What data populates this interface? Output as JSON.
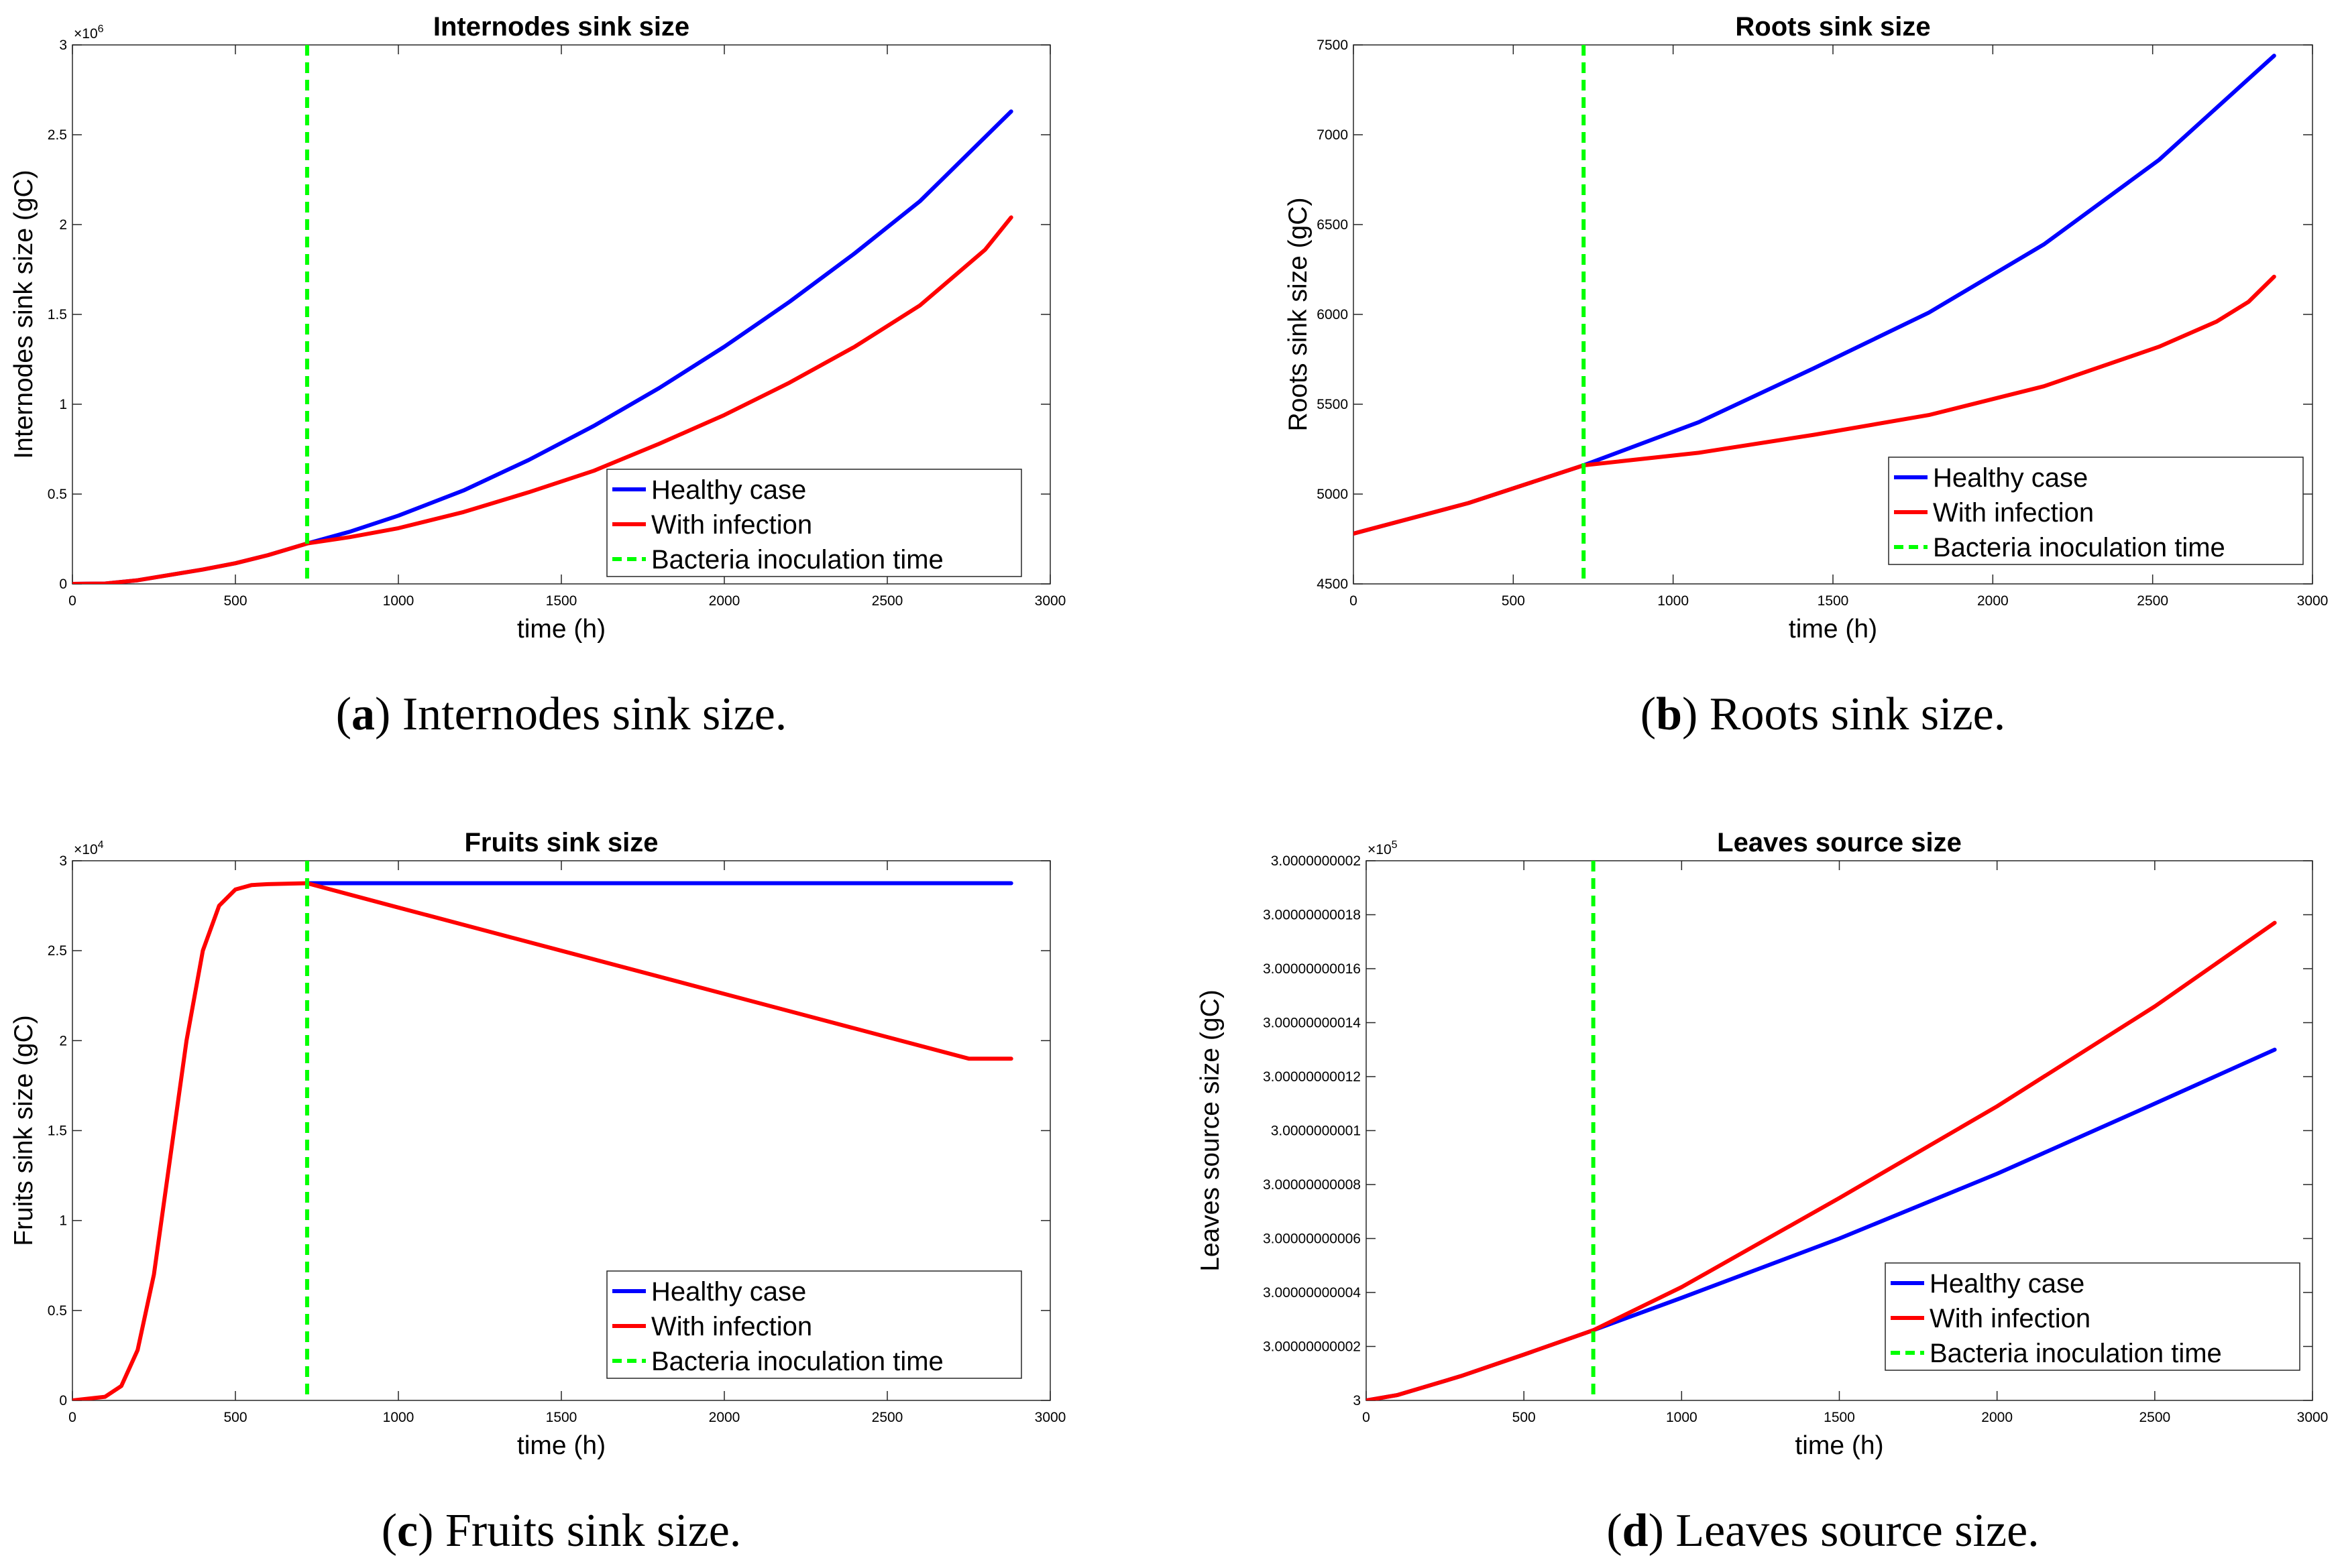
{
  "colors": {
    "healthy": "#0000ff",
    "infection": "#ff0000",
    "inoculation": "#00ff00",
    "axis": "#000000"
  },
  "chart_data": [
    {
      "id": "a",
      "type": "line",
      "title": "Internodes sink size",
      "xlabel": "time (h)",
      "ylabel": "Internodes sink size (gC)",
      "xlim": [
        0,
        3000
      ],
      "ylim": [
        0,
        3000000
      ],
      "xticks": [
        0,
        500,
        1000,
        1500,
        2000,
        2500,
        3000
      ],
      "xtick_labels": [
        "0",
        "500",
        "1000",
        "1500",
        "2000",
        "2500",
        "3000"
      ],
      "yticks": [
        0,
        500000,
        1000000,
        1500000,
        2000000,
        2500000,
        3000000
      ],
      "ytick_labels": [
        "0",
        "0.5",
        "1",
        "1.5",
        "2",
        "2.5",
        "3"
      ],
      "exponent_label": "×10",
      "exponent_power": "6",
      "legend_position": "lower-right",
      "vline_x": 720,
      "series": [
        {
          "name": "Healthy case",
          "x": [
            0,
            100,
            200,
            300,
            400,
            500,
            600,
            720,
            850,
            1000,
            1200,
            1400,
            1600,
            1800,
            2000,
            2200,
            2400,
            2600,
            2880
          ],
          "y": [
            0,
            2000,
            20000,
            50000,
            80000,
            115000,
            160000,
            225000,
            290000,
            380000,
            520000,
            690000,
            880000,
            1090000,
            1320000,
            1570000,
            1840000,
            2130000,
            2630000
          ]
        },
        {
          "name": "With infection",
          "x": [
            0,
            100,
            200,
            300,
            400,
            500,
            600,
            720,
            850,
            1000,
            1200,
            1400,
            1600,
            1800,
            2000,
            2200,
            2400,
            2600,
            2800,
            2880
          ],
          "y": [
            0,
            2000,
            20000,
            50000,
            80000,
            115000,
            160000,
            225000,
            260000,
            310000,
            400000,
            510000,
            630000,
            780000,
            940000,
            1120000,
            1320000,
            1550000,
            1860000,
            2040000
          ]
        },
        {
          "name": "Bacteria inoculation time",
          "style": "dashed"
        }
      ]
    },
    {
      "id": "b",
      "type": "line",
      "title": "Roots sink size",
      "xlabel": "time (h)",
      "ylabel": "Roots sink size (gC)",
      "xlim": [
        0,
        3000
      ],
      "ylim": [
        4500,
        7500
      ],
      "xticks": [
        0,
        500,
        1000,
        1500,
        2000,
        2500,
        3000
      ],
      "xtick_labels": [
        "0",
        "500",
        "1000",
        "1500",
        "2000",
        "2500",
        "3000"
      ],
      "yticks": [
        4500,
        5000,
        5500,
        6000,
        6500,
        7000,
        7500
      ],
      "ytick_labels": [
        "4500",
        "5000",
        "5500",
        "6000",
        "6500",
        "7000",
        "7500"
      ],
      "legend_position": "lower-right",
      "vline_x": 720,
      "series": [
        {
          "name": "Healthy case",
          "x": [
            0,
            360,
            720,
            1080,
            1440,
            1800,
            2160,
            2520,
            2880
          ],
          "y": [
            4780,
            4950,
            5160,
            5400,
            5700,
            6010,
            6390,
            6860,
            7440
          ]
        },
        {
          "name": "With infection",
          "x": [
            0,
            360,
            720,
            1080,
            1440,
            1800,
            2160,
            2520,
            2700,
            2800,
            2880
          ],
          "y": [
            4780,
            4950,
            5160,
            5230,
            5330,
            5440,
            5600,
            5820,
            5960,
            6070,
            6210
          ]
        },
        {
          "name": "Bacteria inoculation time",
          "style": "dashed"
        }
      ]
    },
    {
      "id": "c",
      "type": "line",
      "title": "Fruits sink size",
      "xlabel": "time (h)",
      "ylabel": "Fruits sink size (gC)",
      "xlim": [
        0,
        3000
      ],
      "ylim": [
        0,
        30000
      ],
      "xticks": [
        0,
        500,
        1000,
        1500,
        2000,
        2500,
        3000
      ],
      "xtick_labels": [
        "0",
        "500",
        "1000",
        "1500",
        "2000",
        "2500",
        "3000"
      ],
      "yticks": [
        0,
        5000,
        10000,
        15000,
        20000,
        25000,
        30000
      ],
      "ytick_labels": [
        "0",
        "0.5",
        "1",
        "1.5",
        "2",
        "2.5",
        "3"
      ],
      "exponent_label": "×10",
      "exponent_power": "4",
      "legend_position": "lower-right",
      "vline_x": 720,
      "series": [
        {
          "name": "Healthy case",
          "x": [
            720,
            2880
          ],
          "y": [
            28750,
            28750
          ]
        },
        {
          "name": "With infection",
          "x": [
            0,
            100,
            150,
            200,
            250,
            300,
            350,
            400,
            450,
            500,
            550,
            600,
            720,
            1000,
            1500,
            2000,
            2500,
            2750,
            2880
          ],
          "y": [
            0,
            200,
            800,
            2800,
            7000,
            13500,
            20000,
            25000,
            27500,
            28400,
            28650,
            28700,
            28750,
            27400,
            25000,
            22600,
            20200,
            19000,
            19000
          ]
        },
        {
          "name": "Bacteria inoculation time",
          "style": "dashed"
        }
      ]
    },
    {
      "id": "d",
      "type": "line",
      "title": "Leaves source size",
      "xlabel": "time (h)",
      "ylabel": "Leaves source size (gC)",
      "xlim": [
        0,
        3000
      ],
      "ylim": [
        0,
        20
      ],
      "xticks": [
        0,
        500,
        1000,
        1500,
        2000,
        2500,
        3000
      ],
      "xtick_labels": [
        "0",
        "500",
        "1000",
        "1500",
        "2000",
        "2500",
        "3000"
      ],
      "yticks": [
        0,
        2,
        4,
        6,
        8,
        10,
        12,
        14,
        16,
        18,
        20
      ],
      "ytick_labels": [
        "3",
        "3.00000000002",
        "3.00000000004",
        "3.00000000006",
        "3.00000000008",
        "3.0000000001",
        "3.00000000012",
        "3.00000000014",
        "3.00000000016",
        "3.00000000018",
        "3.0000000002"
      ],
      "exponent_label": "×10",
      "exponent_power": "5",
      "legend_position": "lower-right",
      "vline_x": 720,
      "series": [
        {
          "name": "Healthy case",
          "x": [
            0,
            100,
            300,
            500,
            720,
            1000,
            1500,
            2000,
            2500,
            2880
          ],
          "y": [
            0,
            0.2,
            0.9,
            1.7,
            2.6,
            3.8,
            6.0,
            8.4,
            11.0,
            13.0
          ]
        },
        {
          "name": "With infection",
          "x": [
            0,
            100,
            300,
            500,
            720,
            1000,
            1500,
            2000,
            2500,
            2880
          ],
          "y": [
            0,
            0.2,
            0.9,
            1.7,
            2.6,
            4.2,
            7.5,
            10.9,
            14.6,
            17.7
          ]
        },
        {
          "name": "Bacteria inoculation time",
          "style": "dashed"
        }
      ]
    }
  ],
  "captions": [
    {
      "letter": "a",
      "text": " Internodes sink size."
    },
    {
      "letter": "b",
      "text": " Roots sink size."
    },
    {
      "letter": "c",
      "text": " Fruits sink size."
    },
    {
      "letter": "d",
      "text": " Leaves source size."
    }
  ]
}
